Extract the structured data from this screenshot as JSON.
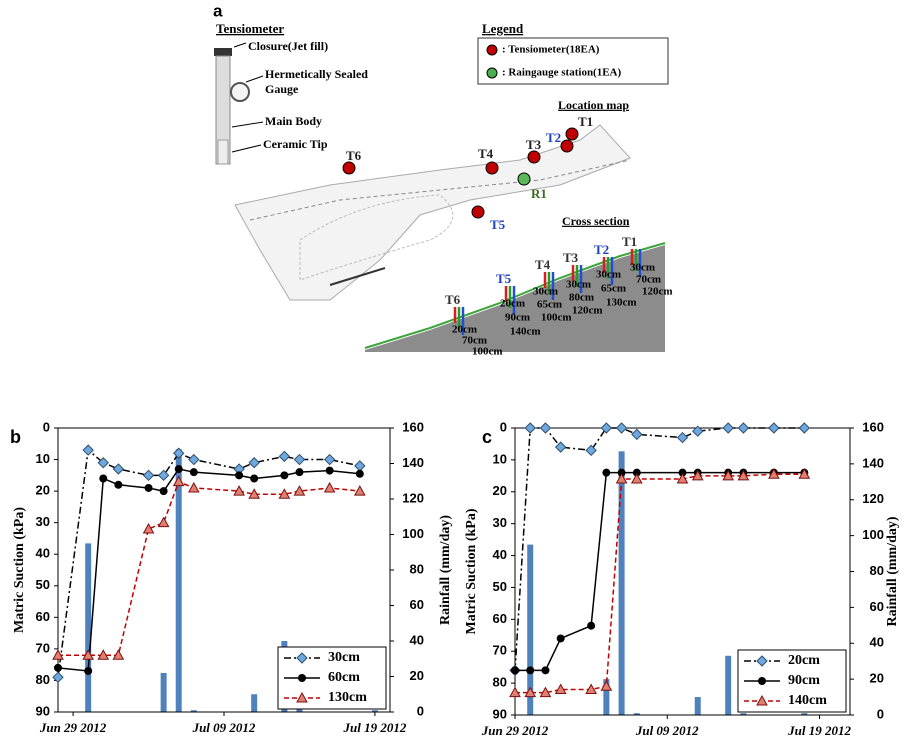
{
  "diagram": {
    "panel": "a",
    "tensiometer": {
      "title": "Tensiometer",
      "parts": [
        "Closure(Jet fill)",
        "Hermetically Sealed",
        "Gauge",
        "Main Body",
        "Ceramic Tip"
      ]
    },
    "legend": {
      "title": "Legend",
      "items": [
        {
          "text": ": Tensiometer(18EA)",
          "color": "#c00000"
        },
        {
          "text": ": Raingauge station(1EA)",
          "color": "#4caf50"
        }
      ]
    },
    "location_map": {
      "title": "Location map",
      "labels": [
        {
          "text": "T1",
          "color": "#222222"
        },
        {
          "text": "T2",
          "color": "#1f3fbf"
        },
        {
          "text": "T3",
          "color": "#222222"
        },
        {
          "text": "T4",
          "color": "#222222"
        },
        {
          "text": "T6",
          "color": "#222222"
        },
        {
          "text": "R1",
          "color": "#3a6b1f"
        },
        {
          "text": "T5",
          "color": "#1f3fbf"
        }
      ]
    },
    "cross_section": {
      "title": "Cross section",
      "stations": [
        {
          "label": "T1",
          "depths": [
            "30cm",
            "70cm",
            "120cm"
          ]
        },
        {
          "label": "T2",
          "depths": [
            "30cm",
            "65cm",
            "130cm"
          ]
        },
        {
          "label": "T3",
          "depths": [
            "30cm",
            "80cm",
            "120cm"
          ]
        },
        {
          "label": "T4",
          "depths": [
            "30cm",
            "65cm",
            "100cm"
          ]
        },
        {
          "label": "T5",
          "depths": [
            "20cm",
            "90cm",
            "140cm"
          ]
        },
        {
          "label": "T6",
          "depths": [
            "20cm",
            "70cm",
            "100cm"
          ]
        }
      ]
    }
  },
  "chart_data": [
    {
      "type": "line",
      "panel": "b",
      "y_label": "Matric Suction (kPa)",
      "y2_label": "Rainfall (mm/day)",
      "xlim": [
        "2012-06-28",
        "2012-07-20"
      ],
      "xticks": [
        {
          "value": "2012-06-29",
          "label": "Jun 29 2012"
        },
        {
          "value": "2012-07-09",
          "label": "Jul 09 2012"
        },
        {
          "value": "2012-07-19",
          "label": "Jul 19 2012"
        }
      ],
      "ylim": [
        90,
        0
      ],
      "yticks": [
        0,
        10,
        20,
        30,
        40,
        50,
        60,
        70,
        80,
        90
      ],
      "y2lim": [
        0,
        160
      ],
      "y2ticks": [
        0,
        20,
        40,
        60,
        80,
        100,
        120,
        140,
        160
      ],
      "legend": "lower right",
      "x": [
        "2012-06-28",
        "2012-06-30",
        "2012-07-01",
        "2012-07-02",
        "2012-07-04",
        "2012-07-05",
        "2012-07-06",
        "2012-07-07",
        "2012-07-10",
        "2012-07-11",
        "2012-07-13",
        "2012-07-14",
        "2012-07-16",
        "2012-07-18"
      ],
      "series": [
        {
          "name": "30cm",
          "color": "#000000",
          "marker": "diamond",
          "marker_color": "#6fa8dc",
          "dash": "dashdot",
          "values": [
            79,
            7,
            11,
            13,
            15,
            15,
            8,
            10,
            13,
            11,
            9,
            10,
            10,
            12
          ]
        },
        {
          "name": "60cm",
          "color": "#000000",
          "marker": "circle",
          "marker_color": "#000000",
          "dash": "solid",
          "values": [
            76,
            77,
            16,
            18,
            19,
            20,
            13,
            14,
            15,
            16,
            15,
            14,
            13.5,
            14.5
          ]
        },
        {
          "name": "130cm",
          "color": "#c00000",
          "marker": "triangle",
          "marker_color": "#e08070",
          "dash": "dashed",
          "values": [
            72,
            72,
            72,
            72,
            32,
            30,
            17,
            19,
            20,
            21,
            21,
            20,
            19,
            20
          ]
        }
      ],
      "bars": {
        "axis": "y2",
        "color": "#4f81bd",
        "x": [
          "2012-06-30",
          "2012-07-05",
          "2012-07-06",
          "2012-07-07",
          "2012-07-11",
          "2012-07-13",
          "2012-07-14",
          "2012-07-19"
        ],
        "values": [
          95,
          22,
          148,
          1,
          10,
          40,
          2,
          1
        ]
      }
    },
    {
      "type": "line",
      "panel": "c",
      "y_label": "Matric Suction (kPa)",
      "y2_label": "Rainfall (mm/day)",
      "xlim": [
        "2012-06-29",
        "2012-07-21"
      ],
      "xticks": [
        {
          "value": "2012-06-29",
          "label": "Jun 29 2012"
        },
        {
          "value": "2012-07-09",
          "label": "Jul 09 2012"
        },
        {
          "value": "2012-07-19",
          "label": "Jul 19 2012"
        }
      ],
      "ylim": [
        90,
        0
      ],
      "yticks": [
        0,
        10,
        20,
        30,
        40,
        50,
        60,
        70,
        80,
        90
      ],
      "y2lim": [
        0,
        160
      ],
      "y2ticks": [
        0,
        20,
        40,
        60,
        80,
        100,
        120,
        140,
        160
      ],
      "legend": "lower right",
      "x": [
        "2012-06-29",
        "2012-06-30",
        "2012-07-01",
        "2012-07-02",
        "2012-07-04",
        "2012-07-05",
        "2012-07-06",
        "2012-07-07",
        "2012-07-10",
        "2012-07-11",
        "2012-07-13",
        "2012-07-14",
        "2012-07-16",
        "2012-07-18"
      ],
      "series": [
        {
          "name": "20cm",
          "color": "#000000",
          "marker": "diamond",
          "marker_color": "#6fa8dc",
          "dash": "dashdot",
          "values": [
            76,
            0,
            0,
            6,
            7,
            0,
            0,
            2,
            3,
            1,
            0,
            0,
            0,
            0
          ]
        },
        {
          "name": "90cm",
          "color": "#000000",
          "marker": "circle",
          "marker_color": "#000000",
          "dash": "solid",
          "values": [
            76,
            76,
            76,
            66,
            62,
            14,
            14,
            14,
            14,
            14,
            14,
            14,
            14,
            14
          ]
        },
        {
          "name": "140cm",
          "color": "#c00000",
          "marker": "triangle",
          "marker_color": "#e08070",
          "dash": "dashed",
          "values": [
            83,
            83,
            83,
            82,
            82,
            81,
            16,
            16,
            16,
            15,
            15,
            15,
            14.5,
            14.5
          ]
        }
      ],
      "bars": {
        "axis": "y2",
        "color": "#4f81bd",
        "x": [
          "2012-06-30",
          "2012-07-05",
          "2012-07-06",
          "2012-07-07",
          "2012-07-11",
          "2012-07-13",
          "2012-07-14",
          "2012-07-18"
        ],
        "values": [
          95,
          20,
          147,
          1,
          10,
          33,
          1,
          1
        ]
      }
    }
  ]
}
